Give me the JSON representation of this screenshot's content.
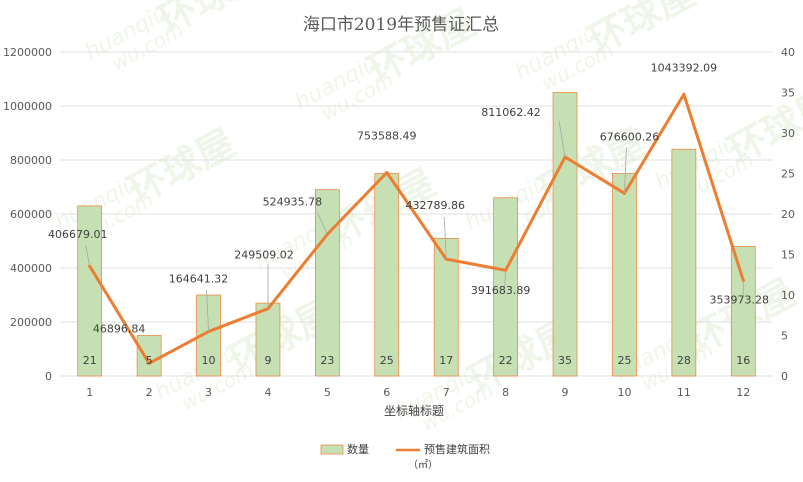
{
  "chart_data": {
    "type": "bar+line",
    "title": "海口市2019年预售证汇总",
    "xlabel": "坐标轴标题",
    "categories": [
      "1",
      "2",
      "3",
      "4",
      "5",
      "6",
      "7",
      "8",
      "9",
      "10",
      "11",
      "12"
    ],
    "left_axis": {
      "ylim": [
        0,
        1200000
      ],
      "ticks": [
        "0",
        "200000",
        "400000",
        "600000",
        "800000",
        "1000000",
        "1200000"
      ]
    },
    "right_axis": {
      "ylim": [
        0,
        40
      ],
      "ticks": [
        "0",
        "5",
        "10",
        "15",
        "20",
        "25",
        "30",
        "35",
        "40"
      ]
    },
    "series": [
      {
        "name": "数量",
        "type": "bar",
        "axis": "right",
        "values": [
          21,
          5,
          10,
          9,
          23,
          25,
          17,
          22,
          35,
          25,
          28,
          16
        ],
        "labels": [
          "21",
          "5",
          "10",
          "9",
          "23",
          "25",
          "17",
          "22",
          "35",
          "25",
          "28",
          "16"
        ],
        "fill": "#c6e0b4",
        "stroke": "#ed7d31"
      },
      {
        "name": "预售建筑面积",
        "name_unit": "（㎡）",
        "type": "line",
        "axis": "left",
        "values": [
          406679.01,
          46896.84,
          164641.32,
          249509.02,
          524935.78,
          753588.49,
          432789.86,
          391683.89,
          811062.42,
          676600.26,
          1043392.09,
          353973.28
        ],
        "labels": [
          "406679.01",
          "46896.84",
          "164641.32",
          "249509.02",
          "524935.78",
          "753588.49",
          "432789.86",
          "391683.89",
          "811062.42",
          "676600.26",
          "1043392.09",
          "353973.28"
        ],
        "color": "#ed7d31"
      }
    ],
    "grid": true,
    "legend": "bottom",
    "watermark": "huanqiu wu.com 环球屋"
  }
}
